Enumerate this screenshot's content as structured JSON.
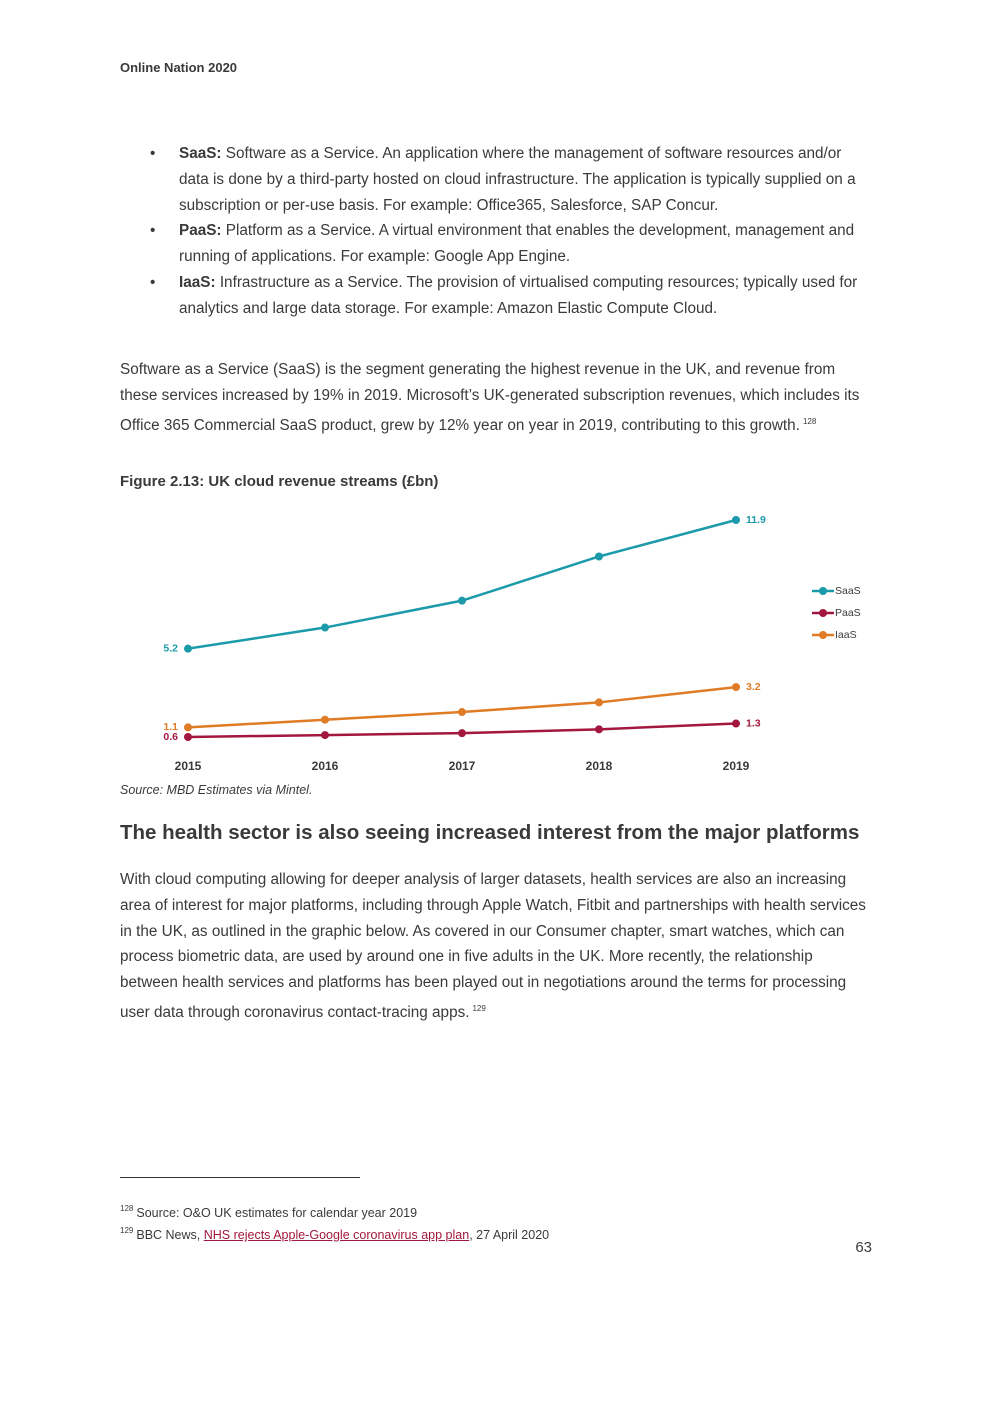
{
  "header": {
    "title": "Online Nation 2020"
  },
  "bullets": [
    {
      "term": "SaaS:",
      "text": "Software as a Service. An application where the management of software resources and/or data is done by a third-party hosted on cloud infrastructure. The application is typically supplied on a subscription or per-use basis. For example: Office365, Salesforce, SAP Concur."
    },
    {
      "term": "PaaS:",
      "text": "Platform as a Service. A virtual environment that enables the development, management and running of applications. For example: Google App Engine."
    },
    {
      "term": "IaaS:",
      "text": "Infrastructure as a Service. The provision of virtualised computing resources; typically used for analytics and large data storage. For example: Amazon Elastic Compute Cloud."
    }
  ],
  "paragraph1": {
    "text": "Software as a Service (SaaS) is the segment generating the highest revenue in the UK, and revenue from these services increased by 19% in 2019. Microsoft’s UK-generated subscription revenues, which includes its Office 365 Commercial SaaS product, grew by 12% year on year in 2019, contributing to this growth.",
    "footnote_ref": "128"
  },
  "figure": {
    "title": "Figure 2.13: UK cloud revenue streams (£bn)",
    "source": "Source: MBD Estimates via Mintel."
  },
  "chart_data": {
    "type": "line",
    "categories": [
      "2015",
      "2016",
      "2017",
      "2018",
      "2019"
    ],
    "series": [
      {
        "name": "SaaS",
        "color": "#1b9aaa",
        "values": [
          5.2,
          6.3,
          7.7,
          10.0,
          11.9
        ]
      },
      {
        "name": "PaaS",
        "color": "#a3173e",
        "values": [
          0.6,
          0.7,
          0.8,
          1.0,
          1.3
        ]
      },
      {
        "name": "IaaS",
        "color": "#e07b26",
        "values": [
          1.1,
          1.5,
          1.9,
          2.4,
          3.2
        ]
      }
    ],
    "legend": "right",
    "grid": false
  },
  "section": {
    "heading": "The health sector is also seeing increased interest from the major platforms",
    "text": "With cloud computing allowing for deeper analysis of larger datasets, health services are also an increasing area of interest for major platforms, including through Apple Watch, Fitbit and partnerships with health services in the UK, as outlined in the graphic below. As covered in our Consumer chapter, smart watches, which can process biometric data, are used by around one in five adults in the UK. More recently, the relationship between health services and platforms has been played out in negotiations around the terms for processing user data through coronavirus contact-tracing apps.",
    "footnote_ref": "129"
  },
  "footnotes": [
    {
      "number": "128",
      "text": "Source: O&O UK estimates for calendar year 2019"
    },
    {
      "number": "129",
      "prefix": "BBC News, ",
      "link": "NHS rejects Apple-Google coronavirus app plan",
      "suffix": ", 27 April 2020"
    }
  ],
  "page_number": "63"
}
